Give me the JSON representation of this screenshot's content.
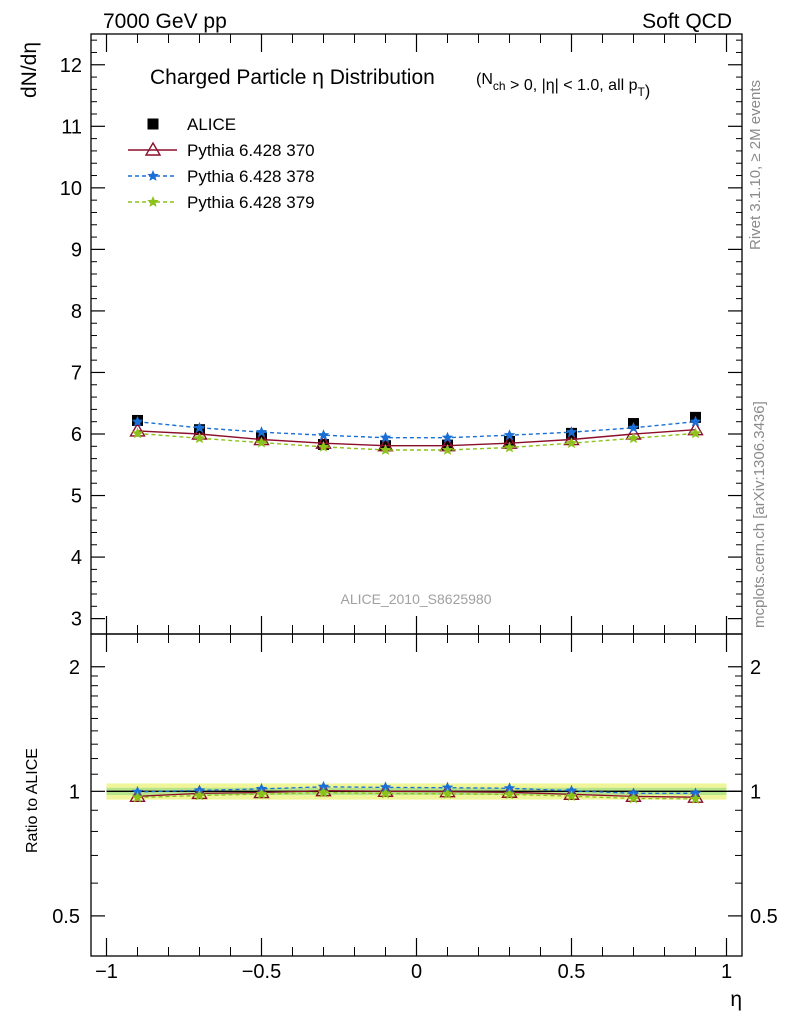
{
  "header": {
    "left": "7000 GeV pp",
    "right": "Soft QCD"
  },
  "side_labels": {
    "rivet": "Rivet 3.1.10, ≥ 2M events",
    "mcplots": "mcplots.cern.ch [arXiv:1306.3436]"
  },
  "chart_data": {
    "type": "line",
    "title": "Charged Particle η Distribution",
    "subtitle": "(N_ch > 0, |η| < 1.0, all p_T)",
    "analysis_label": "ALICE_2010_S8625980",
    "xlabel": "η",
    "ylabel": "dN/dη",
    "ratio_ylabel": "Ratio to ALICE",
    "xlim": [
      -1.05,
      1.05
    ],
    "ylim": [
      2.75,
      12.5
    ],
    "ratio_ylim": [
      0.4,
      2.4
    ],
    "ratio_scale": "log",
    "x_ticks": [
      "−1",
      "−0.5",
      "0",
      "0.5",
      "1"
    ],
    "x_tick_values": [
      -1,
      -0.5,
      0,
      0.5,
      1
    ],
    "y_ticks": [
      "3",
      "4",
      "5",
      "6",
      "7",
      "8",
      "9",
      "10",
      "11",
      "12"
    ],
    "y_tick_values": [
      3,
      4,
      5,
      6,
      7,
      8,
      9,
      10,
      11,
      12
    ],
    "ratio_ticks": [
      "0.5",
      "1",
      "2"
    ],
    "ratio_tick_values": [
      0.5,
      1,
      2
    ],
    "x": [
      -0.9,
      -0.7,
      -0.5,
      -0.3,
      -0.1,
      0.1,
      0.3,
      0.5,
      0.7,
      0.9
    ],
    "series": [
      {
        "name": "ALICE",
        "marker": "square",
        "color": "#000000",
        "values": [
          6.22,
          6.07,
          5.95,
          5.83,
          5.81,
          5.82,
          5.88,
          6.01,
          6.17,
          6.27
        ]
      },
      {
        "name": "Pythia 6.428 370",
        "marker": "triangle",
        "color": "#8b0f2a",
        "values": [
          6.05,
          6.0,
          5.91,
          5.85,
          5.81,
          5.81,
          5.85,
          5.91,
          6.0,
          6.07
        ]
      },
      {
        "name": "Pythia 6.428 378",
        "marker": "star",
        "color": "#1a6fd6",
        "values": [
          6.2,
          6.1,
          6.03,
          5.98,
          5.94,
          5.94,
          5.98,
          6.03,
          6.1,
          6.2
        ]
      },
      {
        "name": "Pythia 6.428 379",
        "marker": "star",
        "color": "#8cc21a",
        "values": [
          6.01,
          5.93,
          5.86,
          5.79,
          5.74,
          5.74,
          5.78,
          5.85,
          5.93,
          6.01
        ]
      }
    ],
    "ratio_band_colors": {
      "inner": "#b6e38c",
      "outer": "#f0f59a"
    },
    "grid": false,
    "legend_position": "top-left"
  }
}
